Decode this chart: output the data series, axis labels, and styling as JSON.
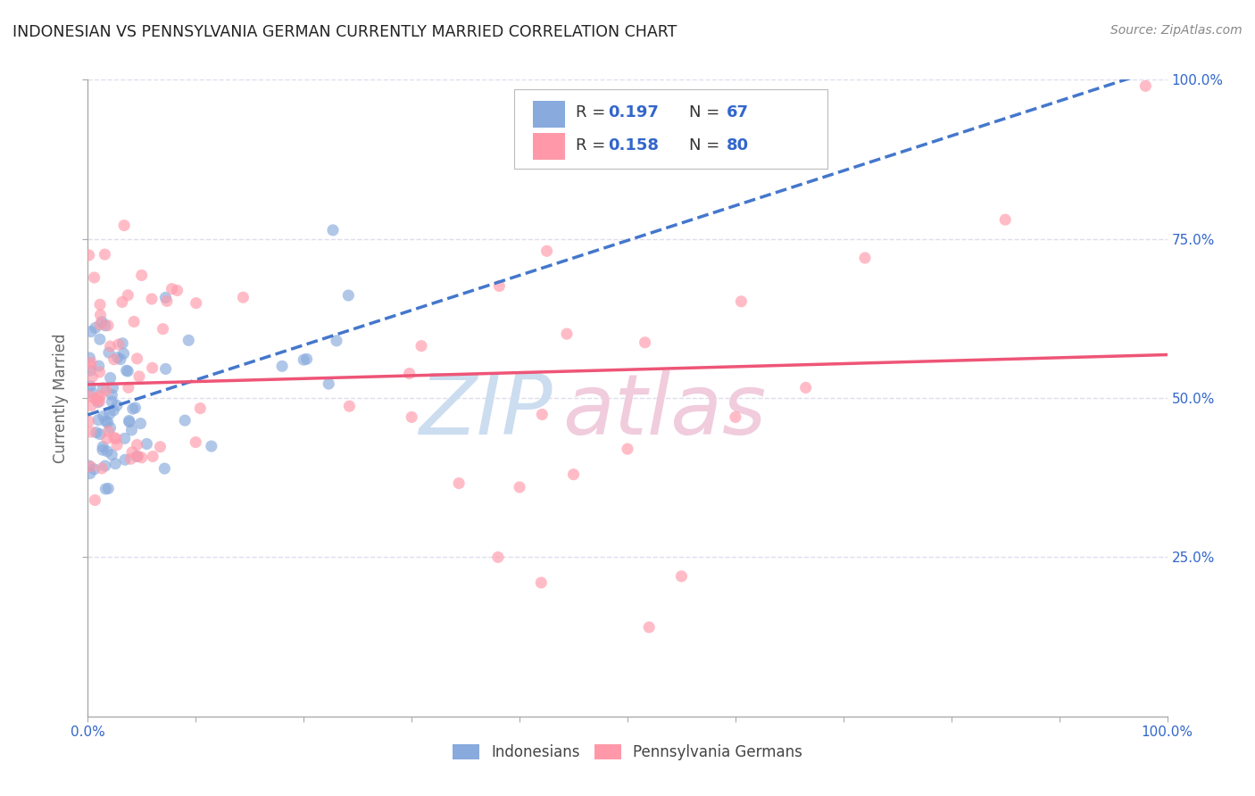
{
  "title": "INDONESIAN VS PENNSYLVANIA GERMAN CURRENTLY MARRIED CORRELATION CHART",
  "source": "Source: ZipAtlas.com",
  "ylabel": "Currently Married",
  "r_indonesian": 0.197,
  "n_indonesian": 67,
  "r_pa_german": 0.158,
  "n_pa_german": 80,
  "color_indonesian": "#88AADD",
  "color_pa_german": "#FF99AA",
  "color_trend_indonesian": "#4477CC",
  "color_trend_pa_german": "#EE5577",
  "background_color": "#FFFFFF",
  "grid_color": "#DDDDEE",
  "title_color": "#222222",
  "source_color": "#888888",
  "axis_label_color": "#3366CC",
  "legend_val_color": "#3366CC",
  "watermark_zip_color": "#CCDDF0",
  "watermark_atlas_color": "#F0CCDD"
}
